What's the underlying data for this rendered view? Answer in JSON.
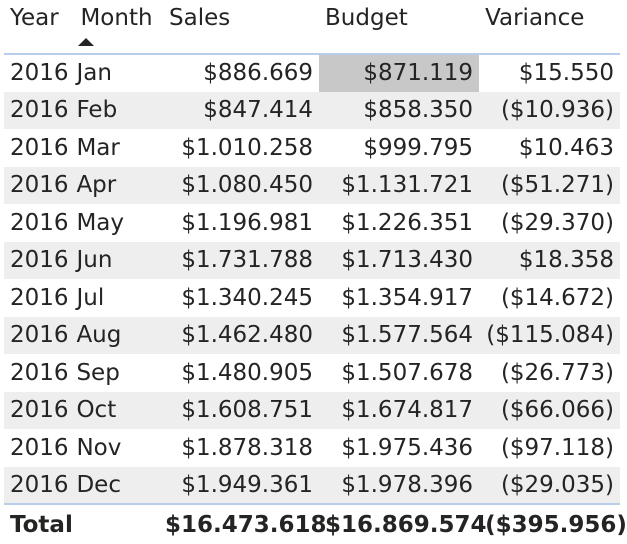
{
  "table": {
    "columns": {
      "year": "Year",
      "month": "Month",
      "sales": "Sales",
      "budget": "Budget",
      "variance": "Variance"
    },
    "sort": {
      "column": "month",
      "direction": "ascending",
      "icon": "sort-ascending-icon"
    },
    "rows": [
      {
        "year": "2016",
        "month": "Jan",
        "sales": "$886.669",
        "budget": "$871.119",
        "variance": "$15.550"
      },
      {
        "year": "2016",
        "month": "Feb",
        "sales": "$847.414",
        "budget": "$858.350",
        "variance": "($10.936)"
      },
      {
        "year": "2016",
        "month": "Mar",
        "sales": "$1.010.258",
        "budget": "$999.795",
        "variance": "$10.463"
      },
      {
        "year": "2016",
        "month": "Apr",
        "sales": "$1.080.450",
        "budget": "$1.131.721",
        "variance": "($51.271)"
      },
      {
        "year": "2016",
        "month": "May",
        "sales": "$1.196.981",
        "budget": "$1.226.351",
        "variance": "($29.370)"
      },
      {
        "year": "2016",
        "month": "Jun",
        "sales": "$1.731.788",
        "budget": "$1.713.430",
        "variance": "$18.358"
      },
      {
        "year": "2016",
        "month": "Jul",
        "sales": "$1.340.245",
        "budget": "$1.354.917",
        "variance": "($14.672)"
      },
      {
        "year": "2016",
        "month": "Aug",
        "sales": "$1.462.480",
        "budget": "$1.577.564",
        "variance": "($115.084)"
      },
      {
        "year": "2016",
        "month": "Sep",
        "sales": "$1.480.905",
        "budget": "$1.507.678",
        "variance": "($26.773)"
      },
      {
        "year": "2016",
        "month": "Oct",
        "sales": "$1.608.751",
        "budget": "$1.674.817",
        "variance": "($66.066)"
      },
      {
        "year": "2016",
        "month": "Nov",
        "sales": "$1.878.318",
        "budget": "$1.975.436",
        "variance": "($97.118)"
      },
      {
        "year": "2016",
        "month": "Dec",
        "sales": "$1.949.361",
        "budget": "$1.978.396",
        "variance": "($29.035)"
      }
    ],
    "total": {
      "label": "Total",
      "sales": "$16.473.618",
      "budget": "$16.869.574",
      "variance": "($395.956)"
    },
    "selected_cell": {
      "row": 0,
      "column": "budget"
    },
    "colors": {
      "header_border": "#b8cde8",
      "stripe": "#eeeeee",
      "selected_cell": "#c8c8c8",
      "text": "#252423"
    }
  }
}
